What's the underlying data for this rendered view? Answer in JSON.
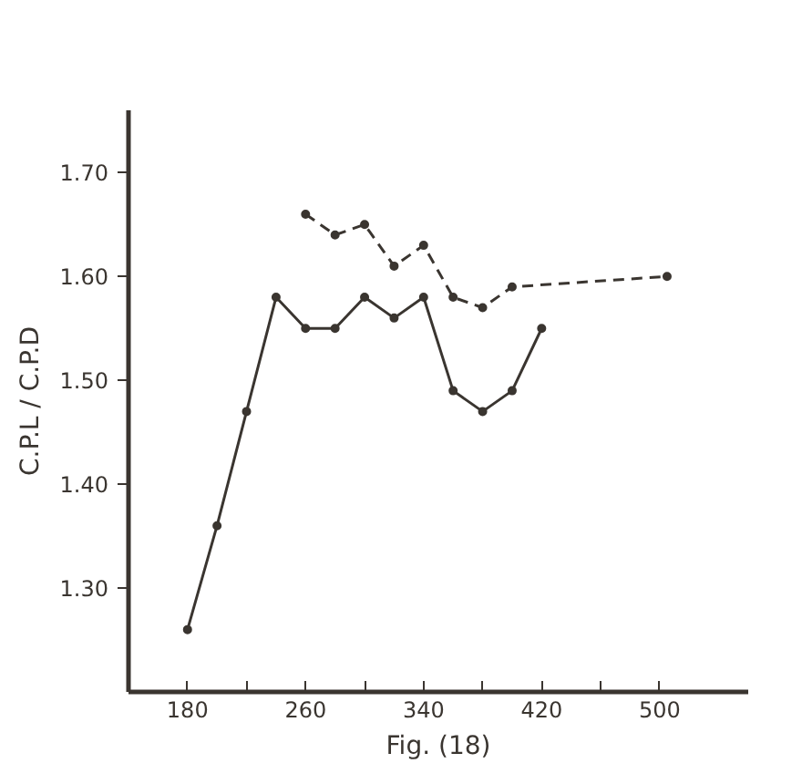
{
  "chart_data": {
    "type": "line",
    "xlabel": "Fig. (18)",
    "ylabel": "C.P.L / C.P.D",
    "xlim": [
      140,
      560
    ],
    "ylim": [
      1.2,
      1.76
    ],
    "xticks": [
      180,
      {
        "value": 220,
        "label": null
      },
      260,
      {
        "value": 300,
        "label": null
      },
      340,
      {
        "value": 380,
        "label": null
      },
      420,
      {
        "value": 460,
        "label": null
      },
      500
    ],
    "yticks": [
      {
        "value": 1.3,
        "label": "1.30"
      },
      {
        "value": 1.4,
        "label": "1.40"
      },
      {
        "value": 1.5,
        "label": "1.50"
      },
      {
        "value": 1.6,
        "label": "1.60"
      },
      {
        "value": 1.7,
        "label": "1.70"
      }
    ],
    "grid": false,
    "marker": "circle",
    "series": [
      {
        "color": "#3a3530",
        "line_style": "solid",
        "x": [
          180,
          200,
          220,
          240,
          260,
          280,
          300,
          320,
          340,
          360,
          380,
          400,
          420
        ],
        "values": [
          1.26,
          1.36,
          1.47,
          1.58,
          1.55,
          1.55,
          1.58,
          1.56,
          1.58,
          1.49,
          1.47,
          1.49,
          1.55
        ]
      },
      {
        "color": "#3a3530",
        "line_style": "dashed",
        "x": [
          260,
          280,
          300,
          320,
          340,
          360,
          380,
          400,
          505
        ],
        "values": [
          1.66,
          1.64,
          1.65,
          1.61,
          1.63,
          1.58,
          1.57,
          1.59,
          1.6
        ]
      }
    ]
  }
}
